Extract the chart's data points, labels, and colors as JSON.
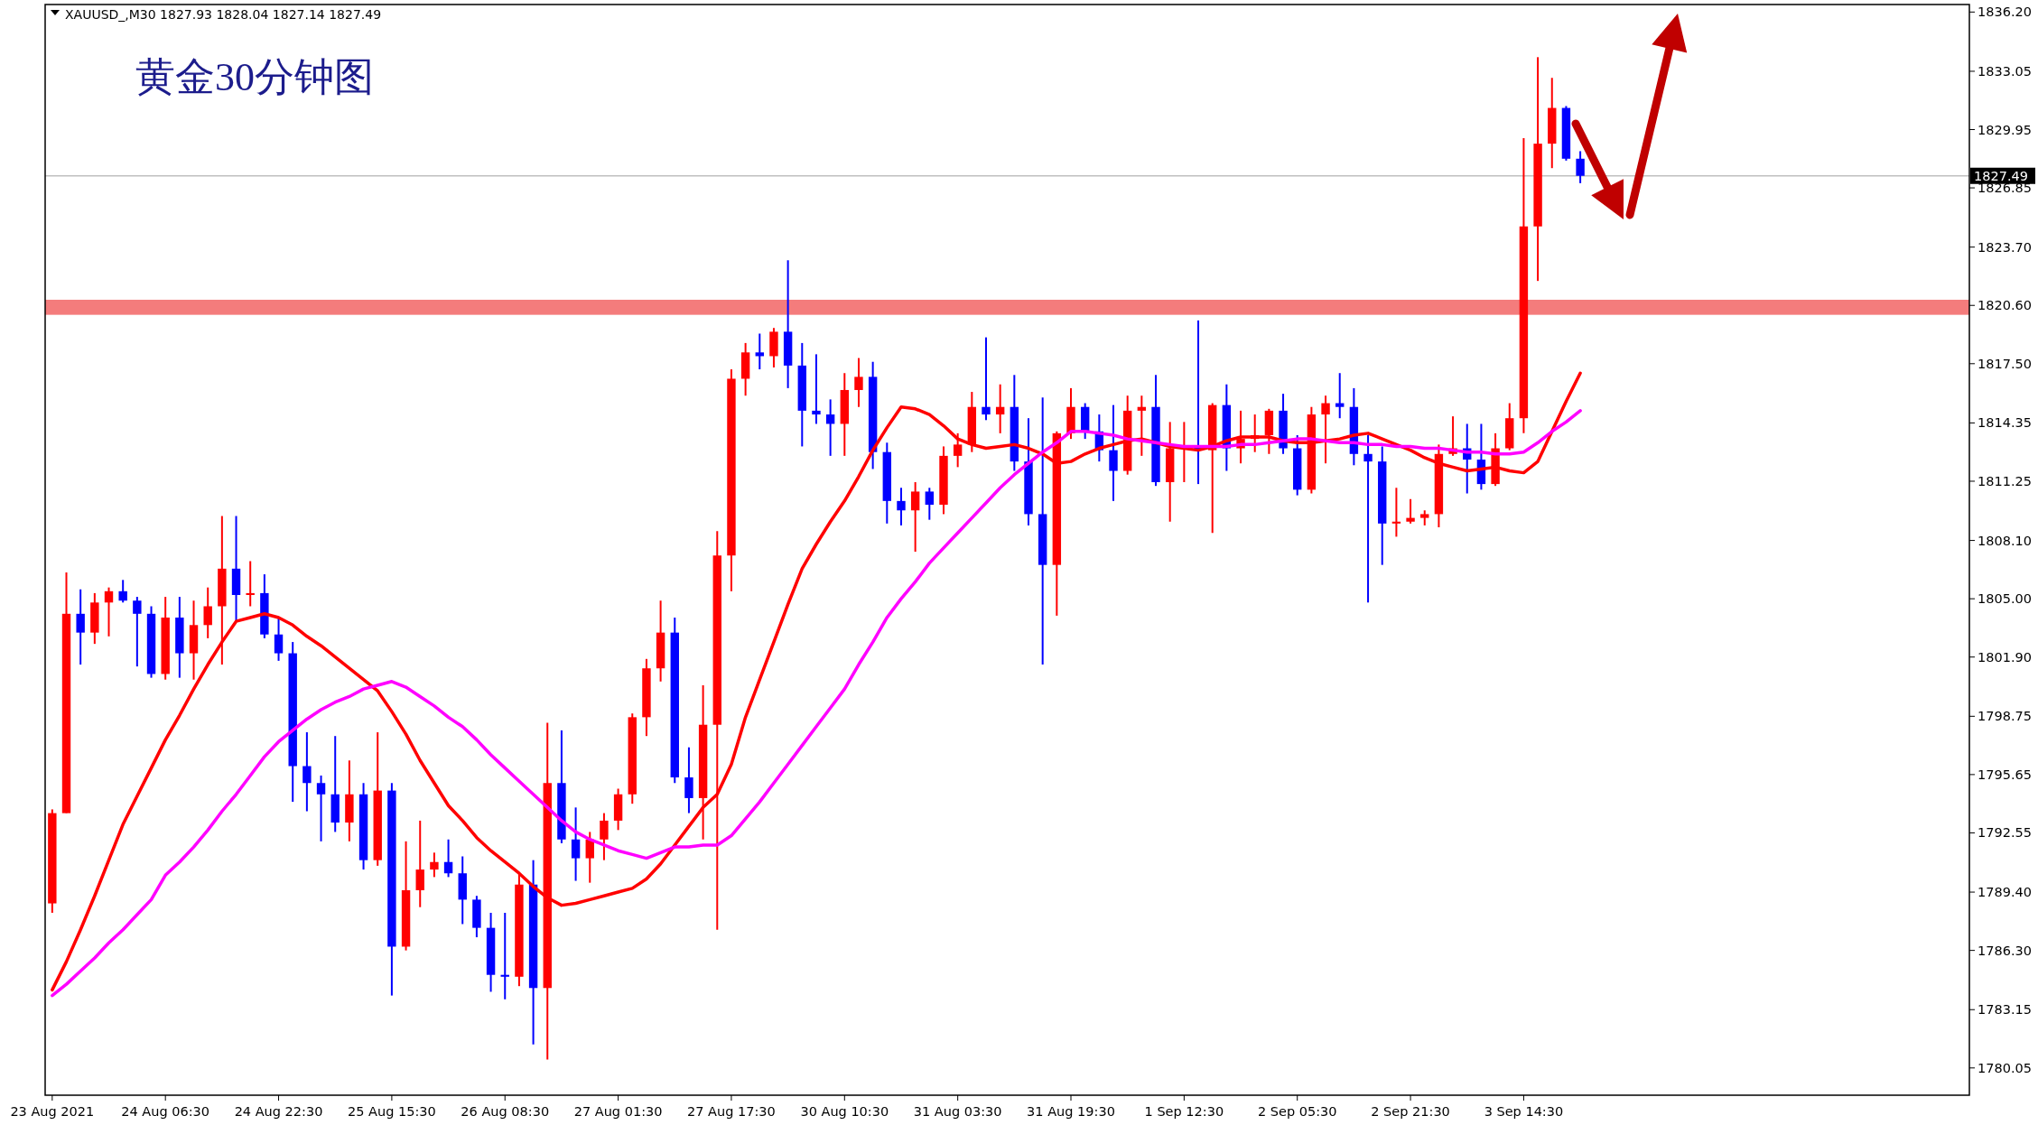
{
  "chart_data": {
    "type": "candlestick",
    "title": "黄金30分钟图",
    "annotations": [
      "XAUUSD_,M30  1827.93 1828.04 1827.14 1827.49"
    ],
    "categories": [
      "23 Aug 2021",
      null,
      null,
      null,
      null,
      null,
      null,
      null,
      "24 Aug 06:30",
      null,
      null,
      null,
      null,
      null,
      null,
      null,
      "24 Aug 22:30",
      null,
      null,
      null,
      null,
      null,
      null,
      null,
      "25 Aug 15:30",
      null,
      null,
      null,
      null,
      null,
      null,
      null,
      "26 Aug 08:30",
      null,
      null,
      null,
      null,
      null,
      null,
      null,
      "27 Aug 01:30",
      null,
      null,
      null,
      null,
      null,
      null,
      null,
      "27 Aug 17:30",
      null,
      null,
      null,
      null,
      null,
      null,
      null,
      "30 Aug 10:30",
      null,
      null,
      null,
      null,
      null,
      null,
      null,
      "31 Aug 03:30",
      null,
      null,
      null,
      null,
      null,
      null,
      null,
      "31 Aug 19:30",
      null,
      null,
      null,
      null,
      null,
      null,
      null,
      "1 Sep 12:30",
      null,
      null,
      null,
      null,
      null,
      null,
      null,
      "2 Sep 05:30",
      null,
      null,
      null,
      null,
      null,
      null,
      null,
      "2 Sep 21:30",
      null,
      null,
      null,
      null,
      null,
      null,
      null,
      "3 Sep 14:30",
      null,
      null,
      null,
      null,
      null,
      null,
      null,
      null,
      null,
      null,
      null,
      null,
      null,
      null,
      null,
      null,
      null,
      null,
      null,
      null,
      null,
      null,
      null,
      null,
      null,
      null,
      null,
      null,
      null,
      null,
      null
    ],
    "ohlc": [
      [
        1788.8,
        1793.8,
        1788.3,
        1793.6
      ],
      [
        1793.6,
        1806.4,
        1793.6,
        1804.2
      ],
      [
        1804.2,
        1805.5,
        1801.5,
        1803.2
      ],
      [
        1803.2,
        1805.3,
        1802.6,
        1804.8
      ],
      [
        1804.8,
        1805.6,
        1803.0,
        1805.4
      ],
      [
        1805.4,
        1806.0,
        1804.8,
        1804.9
      ],
      [
        1804.9,
        1805.1,
        1801.4,
        1804.2
      ],
      [
        1804.2,
        1804.6,
        1800.8,
        1801.0
      ],
      [
        1801.0,
        1805.1,
        1800.7,
        1804.0
      ],
      [
        1804.0,
        1805.1,
        1800.8,
        1802.1
      ],
      [
        1802.1,
        1804.9,
        1800.7,
        1803.6
      ],
      [
        1803.6,
        1805.6,
        1802.9,
        1804.6
      ],
      [
        1804.6,
        1809.4,
        1801.5,
        1806.6
      ],
      [
        1806.6,
        1809.4,
        1803.8,
        1805.2
      ],
      [
        1805.2,
        1807.0,
        1804.6,
        1805.3
      ],
      [
        1805.3,
        1806.3,
        1802.9,
        1803.1
      ],
      [
        1803.1,
        1804.0,
        1801.7,
        1802.1
      ],
      [
        1802.1,
        1802.7,
        1794.2,
        1796.1
      ],
      [
        1796.1,
        1797.9,
        1793.7,
        1795.2
      ],
      [
        1795.2,
        1795.6,
        1792.1,
        1794.6
      ],
      [
        1794.6,
        1797.7,
        1792.6,
        1793.1
      ],
      [
        1793.1,
        1796.4,
        1792.1,
        1794.6
      ],
      [
        1794.6,
        1795.2,
        1790.6,
        1791.1
      ],
      [
        1791.1,
        1797.9,
        1790.8,
        1794.8
      ],
      [
        1794.8,
        1795.2,
        1783.9,
        1786.5
      ],
      [
        1786.5,
        1792.1,
        1786.3,
        1789.5
      ],
      [
        1789.5,
        1793.2,
        1788.6,
        1790.6
      ],
      [
        1790.6,
        1791.5,
        1790.2,
        1791.0
      ],
      [
        1791.0,
        1792.2,
        1790.2,
        1790.4
      ],
      [
        1790.4,
        1791.3,
        1787.7,
        1789.0
      ],
      [
        1789.0,
        1789.2,
        1787.0,
        1787.5
      ],
      [
        1787.5,
        1788.3,
        1784.1,
        1785.0
      ],
      [
        1785.0,
        1788.3,
        1783.7,
        1784.9
      ],
      [
        1784.9,
        1790.4,
        1784.4,
        1789.8
      ],
      [
        1789.8,
        1791.1,
        1781.3,
        1784.3
      ],
      [
        1784.3,
        1798.4,
        1780.5,
        1795.2
      ],
      [
        1795.2,
        1798.0,
        1792.0,
        1792.2
      ],
      [
        1792.2,
        1793.9,
        1790.0,
        1791.2
      ],
      [
        1791.2,
        1792.6,
        1789.9,
        1792.2
      ],
      [
        1792.2,
        1793.6,
        1791.1,
        1793.2
      ],
      [
        1793.2,
        1794.9,
        1792.7,
        1794.6
      ],
      [
        1794.6,
        1798.9,
        1794.1,
        1798.7
      ],
      [
        1798.7,
        1801.8,
        1797.7,
        1801.3
      ],
      [
        1801.3,
        1804.9,
        1800.6,
        1803.2
      ],
      [
        1803.2,
        1804.0,
        1795.2,
        1795.5
      ],
      [
        1795.5,
        1797.1,
        1793.6,
        1794.4
      ],
      [
        1794.4,
        1800.4,
        1792.2,
        1798.3
      ],
      [
        1798.3,
        1808.6,
        1787.4,
        1807.3
      ],
      [
        1807.3,
        1817.2,
        1805.4,
        1816.7
      ],
      [
        1816.7,
        1818.6,
        1815.8,
        1818.1
      ],
      [
        1818.1,
        1819.1,
        1817.2,
        1817.9
      ],
      [
        1817.9,
        1819.4,
        1817.3,
        1819.2
      ],
      [
        1819.2,
        1823.0,
        1816.2,
        1817.4
      ],
      [
        1817.4,
        1818.6,
        1813.1,
        1815.0
      ],
      [
        1815.0,
        1818.0,
        1814.3,
        1814.8
      ],
      [
        1814.8,
        1815.6,
        1812.6,
        1814.3
      ],
      [
        1814.3,
        1817.0,
        1812.6,
        1816.1
      ],
      [
        1816.1,
        1817.8,
        1815.2,
        1816.8
      ],
      [
        1816.8,
        1817.6,
        1811.9,
        1812.8
      ],
      [
        1812.8,
        1813.3,
        1809.0,
        1810.2
      ],
      [
        1810.2,
        1810.9,
        1808.9,
        1809.7
      ],
      [
        1809.7,
        1811.2,
        1807.5,
        1810.7
      ],
      [
        1810.7,
        1810.9,
        1809.2,
        1810.0
      ],
      [
        1810.0,
        1813.1,
        1809.5,
        1812.6
      ],
      [
        1812.6,
        1813.8,
        1812.0,
        1813.2
      ],
      [
        1813.2,
        1816.0,
        1812.8,
        1815.2
      ],
      [
        1815.2,
        1818.9,
        1814.5,
        1814.8
      ],
      [
        1814.8,
        1816.4,
        1813.8,
        1815.2
      ],
      [
        1815.2,
        1816.9,
        1811.8,
        1812.3
      ],
      [
        1812.3,
        1814.6,
        1808.9,
        1809.5
      ],
      [
        1809.5,
        1815.7,
        1801.5,
        1806.8
      ],
      [
        1806.8,
        1813.9,
        1804.1,
        1813.8
      ],
      [
        1813.8,
        1816.2,
        1813.5,
        1815.2
      ],
      [
        1815.2,
        1815.4,
        1813.5,
        1813.9
      ],
      [
        1813.9,
        1814.8,
        1812.3,
        1812.9
      ],
      [
        1812.9,
        1815.3,
        1810.2,
        1811.8
      ],
      [
        1811.8,
        1815.8,
        1811.6,
        1815.0
      ],
      [
        1815.0,
        1815.8,
        1812.6,
        1815.2
      ],
      [
        1815.2,
        1816.9,
        1811.0,
        1811.2
      ],
      [
        1811.2,
        1814.4,
        1809.1,
        1813.0
      ],
      [
        1813.0,
        1814.4,
        1811.2,
        1813.1
      ],
      [
        1813.1,
        1819.8,
        1811.1,
        1812.9
      ],
      [
        1812.9,
        1815.4,
        1808.5,
        1815.3
      ],
      [
        1815.3,
        1816.4,
        1811.8,
        1813.0
      ],
      [
        1813.0,
        1815.0,
        1812.2,
        1813.5
      ],
      [
        1813.5,
        1814.8,
        1812.8,
        1813.7
      ],
      [
        1813.7,
        1815.1,
        1812.7,
        1815.0
      ],
      [
        1815.0,
        1815.9,
        1812.7,
        1813.0
      ],
      [
        1813.0,
        1813.7,
        1810.5,
        1810.8
      ],
      [
        1810.8,
        1815.2,
        1810.6,
        1814.8
      ],
      [
        1814.8,
        1815.8,
        1812.2,
        1815.4
      ],
      [
        1815.4,
        1817.0,
        1814.6,
        1815.2
      ],
      [
        1815.2,
        1816.2,
        1812.1,
        1812.7
      ],
      [
        1812.7,
        1813.7,
        1804.8,
        1812.3
      ],
      [
        1812.3,
        1813.1,
        1806.8,
        1809.0
      ],
      [
        1809.0,
        1810.9,
        1808.3,
        1809.1
      ],
      [
        1809.1,
        1810.3,
        1809.0,
        1809.3
      ],
      [
        1809.3,
        1809.7,
        1808.9,
        1809.5
      ],
      [
        1809.5,
        1813.2,
        1808.8,
        1812.7
      ],
      [
        1812.7,
        1814.7,
        1812.6,
        1813.0
      ],
      [
        1813.0,
        1814.3,
        1810.6,
        1812.4
      ],
      [
        1812.4,
        1814.3,
        1810.8,
        1811.1
      ],
      [
        1811.1,
        1813.8,
        1811.0,
        1813.0
      ],
      [
        1813.0,
        1815.4,
        1812.9,
        1814.6
      ],
      [
        1814.6,
        1829.5,
        1813.8,
        1824.8
      ],
      [
        1824.8,
        1833.8,
        1821.9,
        1829.2
      ],
      [
        1829.2,
        1832.7,
        1827.9,
        1831.1
      ],
      [
        1831.1,
        1831.2,
        1828.3,
        1828.4
      ],
      [
        1828.4,
        1828.8,
        1827.1,
        1827.49
      ],
      null,
      null,
      null,
      null,
      null,
      null,
      null,
      null,
      null,
      null,
      null,
      null,
      null,
      null,
      null,
      null,
      null,
      null,
      null,
      null,
      null,
      null,
      null,
      null,
      null,
      null,
      null
    ],
    "colors": [
      "#ff0000",
      "#ff0000",
      "#0000ff",
      "#ff0000",
      "#ff0000",
      "#0000ff",
      "#0000ff",
      "#0000ff",
      "#ff0000",
      "#0000ff",
      "#ff0000",
      "#ff0000",
      "#ff0000",
      "#0000ff",
      "#ff0000",
      "#0000ff",
      "#0000ff",
      "#0000ff",
      "#0000ff",
      "#0000ff",
      "#0000ff",
      "#ff0000",
      "#0000ff",
      "#ff0000",
      "#0000ff",
      "#ff0000",
      "#ff0000",
      "#ff0000",
      "#0000ff",
      "#0000ff",
      "#0000ff",
      "#0000ff",
      "#0000ff",
      "#ff0000",
      "#0000ff",
      "#ff0000",
      "#0000ff",
      "#0000ff",
      "#ff0000",
      "#ff0000",
      "#ff0000",
      "#ff0000",
      "#ff0000",
      "#ff0000",
      "#0000ff",
      "#0000ff",
      "#ff0000",
      "#ff0000",
      "#ff0000",
      "#ff0000",
      "#0000ff",
      "#ff0000",
      "#0000ff",
      "#0000ff",
      "#0000ff",
      "#0000ff",
      "#ff0000",
      "#ff0000",
      "#0000ff",
      "#0000ff",
      "#0000ff",
      "#ff0000",
      "#0000ff",
      "#ff0000",
      "#ff0000",
      "#ff0000",
      "#0000ff",
      "#ff0000",
      "#0000ff",
      "#0000ff",
      "#0000ff",
      "#ff0000",
      "#ff0000",
      "#0000ff",
      "#0000ff",
      "#0000ff",
      "#ff0000",
      "#ff0000",
      "#0000ff",
      "#ff0000",
      "#ff0000",
      "#0000ff",
      "#ff0000",
      "#0000ff",
      "#ff0000",
      "#ff0000",
      "#ff0000",
      "#0000ff",
      "#0000ff",
      "#ff0000",
      "#ff0000",
      "#0000ff",
      "#0000ff",
      "#0000ff",
      "#0000ff",
      "#ff0000",
      "#ff0000",
      "#ff0000",
      "#ff0000",
      "#ff0000",
      "#0000ff",
      "#0000ff",
      "#ff0000",
      "#ff0000",
      "#ff0000",
      "#ff0000",
      "#ff0000",
      "#0000ff",
      "#0000ff",
      null,
      null,
      null,
      null,
      null,
      null,
      null,
      null,
      null,
      null,
      null,
      null,
      null,
      null,
      null,
      null,
      null,
      null,
      null,
      null,
      null,
      null,
      null,
      null,
      null,
      null,
      null
    ],
    "series": [
      {
        "type": "line",
        "color": "#ff0000",
        "values": [
          1784.2,
          1785.7,
          1787.4,
          1789.2,
          1791.1,
          1793.0,
          1794.5,
          1796.0,
          1797.5,
          1798.8,
          1800.2,
          1801.5,
          1802.7,
          1803.8,
          1804.0,
          1804.2,
          1804.0,
          1803.6,
          1803.0,
          1802.5,
          1801.9,
          1801.3,
          1800.7,
          1800.1,
          1799.0,
          1797.8,
          1796.4,
          1795.2,
          1794.0,
          1793.2,
          1792.3,
          1791.6,
          1791.0,
          1790.4,
          1789.7,
          1789.1,
          1788.7,
          1788.8,
          1789.0,
          1789.2,
          1789.4,
          1789.6,
          1790.1,
          1790.9,
          1791.9,
          1792.9,
          1793.9,
          1794.6,
          1796.2,
          1798.7,
          1800.7,
          1802.7,
          1804.7,
          1806.6,
          1807.9,
          1809.1,
          1810.2,
          1811.5,
          1812.9,
          1814.1,
          1815.2,
          1815.1,
          1814.8,
          1814.2,
          1813.5,
          1813.2,
          1813.0,
          1813.1,
          1813.2,
          1813.0,
          1812.7,
          1812.2,
          1812.3,
          1812.7,
          1813.0,
          1813.2,
          1813.4,
          1813.5,
          1813.3,
          1813.1,
          1813.0,
          1812.9,
          1813.1,
          1813.4,
          1813.6,
          1813.6,
          1813.6,
          1813.4,
          1813.3,
          1813.3,
          1813.4,
          1813.5,
          1813.7,
          1813.8,
          1813.5,
          1813.2,
          1812.9,
          1812.5,
          1812.2,
          1812.0,
          1811.8,
          1811.9,
          1812.0,
          1811.8,
          1811.7,
          1812.3,
          1813.9,
          1815.5,
          1817.0,
          null,
          null,
          null,
          null,
          null,
          null,
          null,
          null,
          null,
          null,
          null,
          null,
          null,
          null,
          null,
          null,
          null,
          null,
          null,
          null,
          null,
          null,
          null,
          null,
          null,
          null,
          null
        ]
      },
      {
        "type": "line",
        "color": "#ff00ff",
        "values": [
          1783.9,
          1784.5,
          1785.2,
          1785.9,
          1786.7,
          1787.4,
          1788.2,
          1789.0,
          1790.3,
          1791.0,
          1791.8,
          1792.7,
          1793.7,
          1794.6,
          1795.6,
          1796.6,
          1797.4,
          1798.0,
          1798.6,
          1799.1,
          1799.5,
          1799.8,
          1800.2,
          1800.4,
          1800.6,
          1800.3,
          1799.8,
          1799.3,
          1798.7,
          1798.2,
          1797.5,
          1796.7,
          1796.0,
          1795.3,
          1794.6,
          1793.9,
          1793.2,
          1792.6,
          1792.2,
          1791.9,
          1791.6,
          1791.4,
          1791.2,
          1791.5,
          1791.8,
          1791.8,
          1791.9,
          1791.9,
          1792.4,
          1793.3,
          1794.2,
          1795.2,
          1796.2,
          1797.2,
          1798.2,
          1799.2,
          1800.2,
          1801.5,
          1802.7,
          1804.0,
          1805.0,
          1805.9,
          1806.9,
          1807.7,
          1808.5,
          1809.3,
          1810.1,
          1810.9,
          1811.6,
          1812.2,
          1812.8,
          1813.3,
          1813.9,
          1813.9,
          1813.8,
          1813.7,
          1813.5,
          1813.4,
          1813.3,
          1813.2,
          1813.1,
          1813.1,
          1813.1,
          1813.1,
          1813.2,
          1813.2,
          1813.3,
          1813.4,
          1813.5,
          1813.5,
          1813.4,
          1813.3,
          1813.3,
          1813.2,
          1813.2,
          1813.1,
          1813.1,
          1813.0,
          1813.0,
          1812.9,
          1812.8,
          1812.8,
          1812.7,
          1812.7,
          1812.8,
          1813.3,
          1813.9,
          1814.4,
          1815.0,
          null,
          null,
          null,
          null,
          null,
          null,
          null,
          null,
          null,
          null,
          null,
          null,
          null,
          null,
          null,
          null,
          null,
          null,
          null,
          null,
          null,
          null,
          null,
          null,
          null,
          null,
          null
        ]
      }
    ],
    "ylim": [
      1778.6,
      1836.6
    ],
    "yticks": [
      {
        "value": 1780.05,
        "label": "1780.05"
      },
      {
        "value": 1783.15,
        "label": "1783.15"
      },
      {
        "value": 1786.3,
        "label": "1786.30"
      },
      {
        "value": 1789.4,
        "label": "1789.40"
      },
      {
        "value": 1792.55,
        "label": "1792.55"
      },
      {
        "value": 1795.65,
        "label": "1795.65"
      },
      {
        "value": 1798.75,
        "label": "1798.75"
      },
      {
        "value": 1801.9,
        "label": "1801.90"
      },
      {
        "value": 1805.0,
        "label": "1805.00"
      },
      {
        "value": 1808.1,
        "label": "1808.10"
      },
      {
        "value": 1811.25,
        "label": "1811.25"
      },
      {
        "value": 1814.35,
        "label": "1814.35"
      },
      {
        "value": 1817.5,
        "label": "1817.50"
      },
      {
        "value": 1820.6,
        "label": "1820.60"
      },
      {
        "value": 1823.7,
        "label": "1823.70"
      },
      {
        "value": 1826.85,
        "label": "1826.85"
      },
      {
        "value": 1829.95,
        "label": "1829.95"
      },
      {
        "value": 1833.05,
        "label": "1833.05"
      },
      {
        "value": 1836.2,
        "label": "1836.20"
      }
    ],
    "ref_lines": [
      {
        "axis": "y",
        "value": 1827.49,
        "label": "1827.49",
        "color": "#c0c0c0"
      }
    ],
    "bands": [
      {
        "axis": "y",
        "from": 1820.1,
        "to": 1820.9,
        "color": "#f47c7c"
      }
    ]
  }
}
